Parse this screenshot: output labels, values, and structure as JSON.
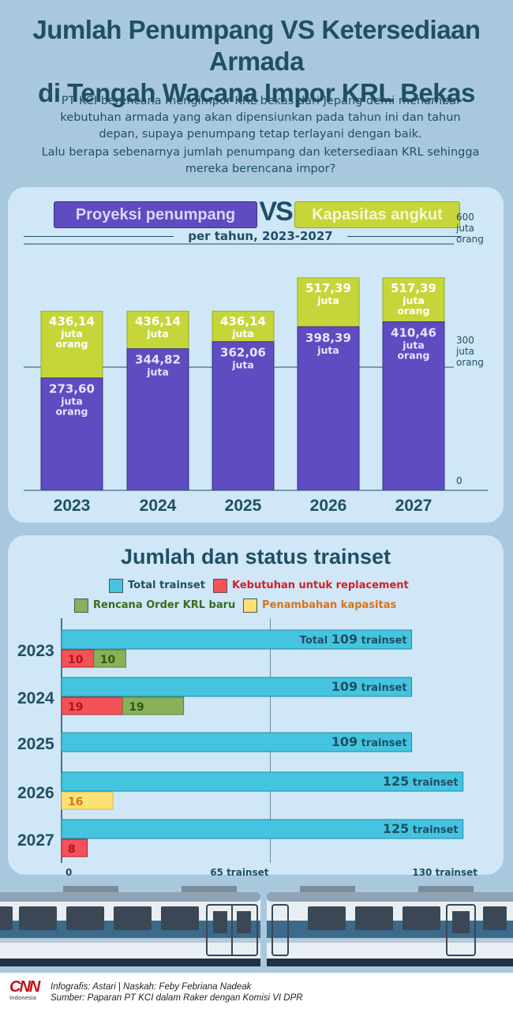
{
  "title_line1": "Jumlah Penumpang VS Ketersediaan Armada",
  "title_line2": "di Tengah Wacana Impor KRL Bekas",
  "intro_p1": "PT KCI berencana mengimpor KRL bekas dari Jepang demi menambal kebutuhan armada yang akan dipensiunkan pada tahun ini dan tahun depan, supaya penumpang tetap terlayani dengan baik.",
  "intro_p2": "Lalu berapa sebenarnya jumlah penumpang dan ketersediaan KRL sehingga mereka berencana impor?",
  "chart_data": [
    {
      "type": "bar",
      "title": "Proyeksi penumpang VS Kapasitas angkut",
      "subtitle": "per tahun, 2023-2027",
      "vs_label": "VS",
      "categories": [
        "2023",
        "2024",
        "2025",
        "2026",
        "2027"
      ],
      "series": [
        {
          "name": "Kapasitas angkut",
          "values": [
            436.14,
            436.14,
            436.14,
            517.39,
            517.39
          ],
          "labels": [
            "436,14",
            "436,14",
            "436,14",
            "517,39",
            "517,39"
          ],
          "units": [
            "juta orang",
            "juta",
            "juta",
            "juta",
            "juta orang"
          ],
          "color": "#c6d63a"
        },
        {
          "name": "Proyeksi penumpang",
          "values": [
            273.6,
            344.82,
            362.06,
            398.39,
            410.46
          ],
          "labels": [
            "273,60",
            "344,82",
            "362,06",
            "398,39",
            "410,46"
          ],
          "units": [
            "juta orang",
            "juta",
            "juta",
            "juta",
            "juta orang"
          ],
          "color": "#5e4cc0"
        }
      ],
      "ylim": [
        0,
        600
      ],
      "yticks": [
        {
          "value": 0,
          "label": "0"
        },
        {
          "value": 300,
          "label": "300 juta orang"
        },
        {
          "value": 600,
          "label": "600 juta orang"
        }
      ],
      "overlay": true
    },
    {
      "type": "bar",
      "orientation": "horizontal",
      "title": "Jumlah dan status trainset",
      "categories": [
        "2023",
        "2024",
        "2025",
        "2026",
        "2027"
      ],
      "legend": [
        {
          "name": "Total trainset",
          "color": "#45c4e0",
          "text_color": "#1f4f63"
        },
        {
          "name": "Kebutuhan untuk replacement",
          "color": "#f25258",
          "text_color": "#d1202a"
        },
        {
          "name": "Rencana Order KRL baru",
          "color": "#8ab05a",
          "text_color": "#3a6b1a"
        },
        {
          "name": "Penambahan kapasitas",
          "color": "#fbe277",
          "text_color": "#d9731a"
        }
      ],
      "total": [
        {
          "year": "2023",
          "value": 109,
          "prefix": "Total ",
          "number": "109",
          "unit": " trainset"
        },
        {
          "year": "2024",
          "value": 109,
          "prefix": "",
          "number": "109",
          "unit": " trainset"
        },
        {
          "year": "2025",
          "value": 109,
          "prefix": "",
          "number": "109",
          "unit": " trainset"
        },
        {
          "year": "2026",
          "value": 125,
          "prefix": "",
          "number": "125",
          "unit": " trainset"
        },
        {
          "year": "2027",
          "value": 125,
          "prefix": "",
          "number": "125",
          "unit": " trainset"
        }
      ],
      "sub_bars": [
        {
          "year": "2023",
          "segments": [
            {
              "type": "replacement",
              "value": 10,
              "label": "10"
            },
            {
              "type": "order",
              "value": 10,
              "label": "10"
            }
          ]
        },
        {
          "year": "2024",
          "segments": [
            {
              "type": "replacement",
              "value": 19,
              "label": "19"
            },
            {
              "type": "order",
              "value": 19,
              "label": "19"
            }
          ]
        },
        {
          "year": "2025",
          "segments": []
        },
        {
          "year": "2026",
          "segments": [
            {
              "type": "capacity",
              "value": 16,
              "label": "16"
            }
          ]
        },
        {
          "year": "2027",
          "segments": [
            {
              "type": "replacement",
              "value": 8,
              "label": "8"
            }
          ]
        }
      ],
      "xlim": [
        0,
        130
      ],
      "xticks": [
        {
          "value": 0,
          "label": "0"
        },
        {
          "value": 65,
          "label": "65 trainset"
        },
        {
          "value": 130,
          "label": "130 trainset"
        }
      ]
    }
  ],
  "credit_line1": "Infografis: Astari | Naskah: Feby Febriana Nadeak",
  "credit_line2": "Sumber: Paparan PT KCI dalam Raker dengan Komisi VI DPR",
  "logo_text": "CNN",
  "logo_sub": "Indonesia"
}
